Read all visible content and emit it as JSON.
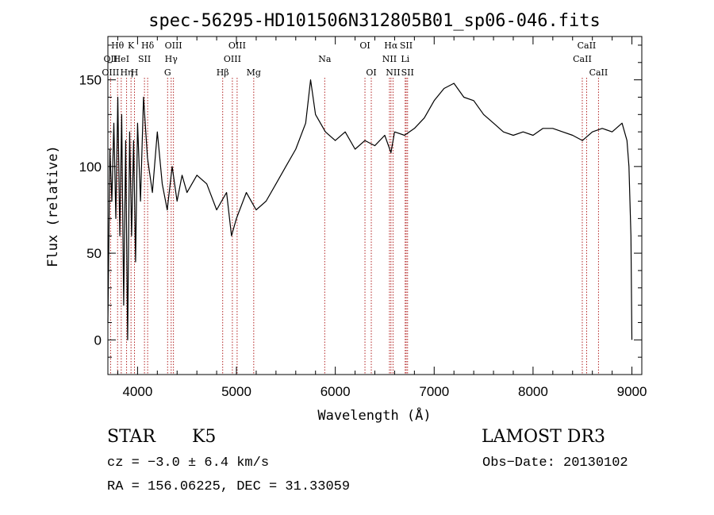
{
  "chart_data": {
    "type": "line",
    "title": "spec-56295-HD101506N312805B01_sp06-046.fits",
    "xlabel": "Wavelength (Å)",
    "ylabel": "Flux (relative)",
    "xlim": [
      3700,
      9100
    ],
    "ylim": [
      -20,
      175
    ],
    "xticks": [
      4000,
      5000,
      6000,
      7000,
      8000,
      9000
    ],
    "yticks": [
      0,
      50,
      100,
      150
    ],
    "grid": false,
    "series": [
      {
        "name": "flux",
        "x": [
          3700,
          3720,
          3740,
          3760,
          3780,
          3800,
          3820,
          3840,
          3860,
          3880,
          3900,
          3920,
          3940,
          3960,
          3980,
          4000,
          4030,
          4060,
          4100,
          4150,
          4200,
          4250,
          4300,
          4350,
          4400,
          4450,
          4500,
          4600,
          4700,
          4800,
          4850,
          4900,
          4950,
          5000,
          5100,
          5200,
          5300,
          5400,
          5500,
          5600,
          5700,
          5750,
          5800,
          5900,
          6000,
          6100,
          6200,
          6300,
          6400,
          6500,
          6563,
          6600,
          6700,
          6800,
          6900,
          7000,
          7100,
          7200,
          7300,
          7400,
          7500,
          7600,
          7700,
          7800,
          7900,
          8000,
          8100,
          8200,
          8300,
          8400,
          8500,
          8600,
          8700,
          8800,
          8900,
          8950,
          8970,
          8990,
          9000
        ],
        "y": [
          10,
          110,
          80,
          125,
          70,
          140,
          60,
          130,
          20,
          115,
          0,
          120,
          60,
          115,
          45,
          125,
          80,
          140,
          105,
          85,
          120,
          90,
          75,
          100,
          80,
          95,
          85,
          95,
          90,
          75,
          80,
          85,
          60,
          70,
          85,
          75,
          80,
          90,
          100,
          110,
          125,
          150,
          130,
          120,
          115,
          120,
          110,
          115,
          112,
          118,
          108,
          120,
          118,
          122,
          128,
          138,
          145,
          148,
          140,
          138,
          130,
          125,
          120,
          118,
          120,
          118,
          122,
          122,
          120,
          118,
          115,
          120,
          122,
          120,
          125,
          115,
          100,
          60,
          0
        ]
      }
    ],
    "lines": [
      {
        "label": "Hθ",
        "wavelength": 3798,
        "row": 0
      },
      {
        "label": "OII",
        "wavelength": 3727,
        "row": 1
      },
      {
        "label": "OIII",
        "wavelength": 3727,
        "row": 2
      },
      {
        "label": "HeI",
        "wavelength": 3835,
        "row": 1
      },
      {
        "label": "Hη",
        "wavelength": 3889,
        "row": 2
      },
      {
        "label": "K",
        "wavelength": 3934,
        "row": 0
      },
      {
        "label": "H",
        "wavelength": 3969,
        "row": 2
      },
      {
        "label": "SII",
        "wavelength": 4070,
        "row": 1
      },
      {
        "label": "Hδ",
        "wavelength": 4102,
        "row": 0
      },
      {
        "label": "OIII",
        "wavelength": 4363,
        "row": 0
      },
      {
        "label": "Hγ",
        "wavelength": 4340,
        "row": 1
      },
      {
        "label": "G",
        "wavelength": 4304,
        "row": 2
      },
      {
        "label": "Hβ",
        "wavelength": 4861,
        "row": 2
      },
      {
        "label": "OIII",
        "wavelength": 5007,
        "row": 0
      },
      {
        "label": "OIII",
        "wavelength": 4959,
        "row": 1
      },
      {
        "label": "Mg",
        "wavelength": 5175,
        "row": 2
      },
      {
        "label": "Na",
        "wavelength": 5893,
        "row": 1
      },
      {
        "label": "OI",
        "wavelength": 6300,
        "row": 0
      },
      {
        "label": "OI",
        "wavelength": 6364,
        "row": 2
      },
      {
        "label": "Hα",
        "wavelength": 6563,
        "row": 0
      },
      {
        "label": "NII",
        "wavelength": 6548,
        "row": 1
      },
      {
        "label": "NII",
        "wavelength": 6584,
        "row": 2
      },
      {
        "label": "SII",
        "wavelength": 6717,
        "row": 0
      },
      {
        "label": "Li",
        "wavelength": 6707,
        "row": 1
      },
      {
        "label": "SII",
        "wavelength": 6731,
        "row": 2
      },
      {
        "label": "CaII",
        "wavelength": 8542,
        "row": 0
      },
      {
        "label": "CaII",
        "wavelength": 8498,
        "row": 1
      },
      {
        "label": "CaII",
        "wavelength": 8662,
        "row": 2
      }
    ]
  },
  "info": {
    "class": "STAR",
    "subclass": "K5",
    "survey": "LAMOST DR3",
    "cz": "cz = −3.0 ± 6.4 km/s",
    "obs_date": "Obs−Date: 20130102",
    "radec": "RA = 156.06225, DEC =  31.33059"
  },
  "colors": {
    "line": "#000000",
    "marker": "#b22222",
    "background": "#ffffff"
  }
}
